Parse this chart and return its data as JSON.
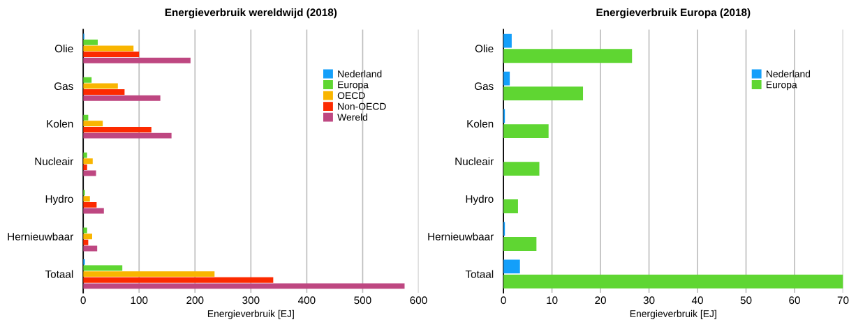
{
  "chart_data": [
    {
      "type": "bar",
      "orientation": "horizontal",
      "title": "Energieverbruik wereldwijd (2018)",
      "xlabel": "Energieverbruik [EJ]",
      "categories": [
        "Olie",
        "Gas",
        "Kolen",
        "Nucleair",
        "Hydro",
        "Hernieuwbaar",
        "Totaal"
      ],
      "series": [
        {
          "name": "Nederland",
          "color": "#139ffa",
          "values": [
            2,
            null,
            null,
            0,
            0,
            null,
            3
          ]
        },
        {
          "name": "Europa",
          "color": "#5fd632",
          "values": [
            26,
            15,
            9,
            7,
            3,
            7,
            70
          ]
        },
        {
          "name": "OECD",
          "color": "#f9b500",
          "values": [
            90,
            62,
            35,
            17,
            12,
            16,
            235
          ]
        },
        {
          "name": "Non-OECD",
          "color": "#fc2a00",
          "values": [
            100,
            74,
            122,
            7,
            24,
            9,
            340
          ]
        },
        {
          "name": "Wereld",
          "color": "#be4781",
          "values": [
            192,
            138,
            158,
            23,
            37,
            25,
            575
          ]
        }
      ],
      "xlim": [
        0,
        600
      ],
      "xticks": [
        0,
        100,
        200,
        300,
        400,
        500,
        600
      ],
      "grid": "x",
      "legend": "top right"
    },
    {
      "type": "bar",
      "orientation": "horizontal",
      "title": "Energieverbruik Europa (2018)",
      "xlabel": "Energieverbruik [EJ]",
      "categories": [
        "Olie",
        "Gas",
        "Kolen",
        "Nucleair",
        "Hydro",
        "Hernieuwbaar",
        "Totaal"
      ],
      "series": [
        {
          "name": "Nederland",
          "color": "#139ffa",
          "values": [
            1.7,
            1.3,
            0.3,
            0,
            0,
            0.3,
            3.4
          ]
        },
        {
          "name": "Europa",
          "color": "#5fd632",
          "values": [
            26.5,
            16.4,
            9.3,
            7.4,
            3.0,
            6.8,
            70
          ]
        }
      ],
      "xlim": [
        0,
        70
      ],
      "xticks": [
        0,
        10,
        20,
        30,
        40,
        50,
        60,
        70
      ],
      "grid": "x",
      "legend": "top right"
    }
  ]
}
